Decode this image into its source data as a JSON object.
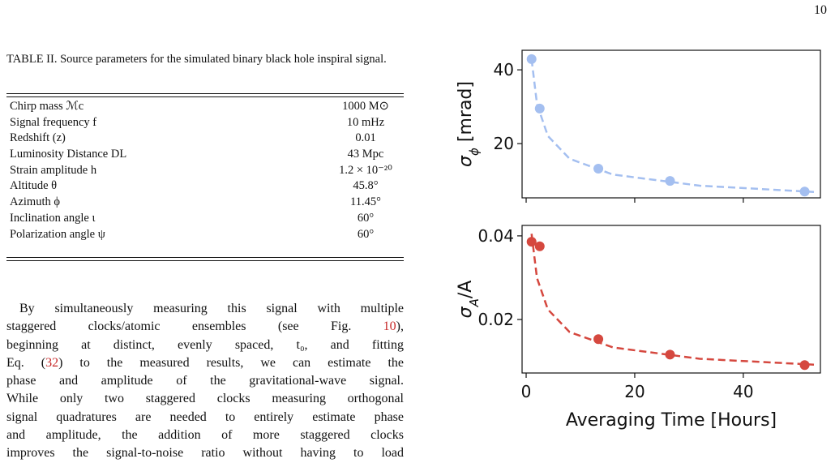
{
  "page_number": "10",
  "table": {
    "caption": "TABLE II. Source parameters for the simulated binary black hole inspiral signal.",
    "rows": [
      [
        "Chirp mass ℳc",
        "1000 M⊙"
      ],
      [
        "Signal frequency f",
        "10 mHz"
      ],
      [
        "Redshift (z)",
        "0.01"
      ],
      [
        "Luminosity Distance DL",
        "43 Mpc"
      ],
      [
        "Strain amplitude h",
        "1.2 × 10⁻²⁰"
      ],
      [
        "Altitude θ",
        "45.8°"
      ],
      [
        "Azimuth ϕ",
        "11.45°"
      ],
      [
        "Inclination angle ι",
        "60°"
      ],
      [
        "Polarization angle ψ",
        "60°"
      ]
    ]
  },
  "paragraph": [
    [
      "By simultaneously measuring this signal with multiple"
    ],
    [
      "staggered clocks/atomic ensembles (see Fig. ",
      "10",
      "),"
    ],
    [
      "beginning at distinct, evenly spaced, t₀, and fitting"
    ],
    [
      "Eq. (",
      "32",
      ") to the measured results, we can estimate the"
    ],
    [
      "phase and amplitude of the gravitational-wave signal."
    ],
    [
      "While only two staggered clocks measuring orthogonal"
    ],
    [
      "signal quadratures are needed to entirely estimate phase"
    ],
    [
      "and amplitude, the addition of more staggered clocks"
    ],
    [
      "improves the signal-to-noise ratio without having to load"
    ]
  ],
  "chart_data": [
    {
      "type": "scatter",
      "ylabel": [
        "σ",
        "ϕ",
        " [mrad]"
      ],
      "color": "#a4bff0",
      "x": [
        1,
        2.5,
        13.3,
        26.5,
        51.3
      ],
      "values": [
        42.9,
        29.5,
        13.2,
        9.9,
        7.0
      ],
      "fit": {
        "x": [
          1,
          2,
          4,
          8,
          16,
          32,
          53
        ],
        "values": [
          42.9,
          30.7,
          22.1,
          15.9,
          11.6,
          8.6,
          6.9
        ]
      },
      "xlim": [
        -0.75,
        54.2
      ],
      "xticks": [
        0,
        20,
        40
      ],
      "ylim": [
        5.3,
        45.3
      ],
      "yticks": [
        20,
        40
      ]
    },
    {
      "type": "scatter",
      "ylabel": [
        "σ",
        "A",
        "/A"
      ],
      "xlabel": "Averaging Time [Hours]",
      "color": "#d5483f",
      "x": [
        1,
        2.5,
        13.3,
        26.5,
        51.3
      ],
      "values": [
        0.0386,
        0.0375,
        0.0153,
        0.0116,
        0.0091
      ],
      "fit": {
        "x": [
          1,
          2,
          4,
          8,
          16,
          32,
          53
        ],
        "values": [
          0.0405,
          0.0299,
          0.0224,
          0.017,
          0.0133,
          0.0106,
          0.0092
        ]
      },
      "xlim": [
        -0.75,
        54.2
      ],
      "xticks": [
        0,
        20,
        40
      ],
      "ylim": [
        0.0072,
        0.0425
      ],
      "yticks": [
        0.02,
        0.04
      ]
    }
  ]
}
